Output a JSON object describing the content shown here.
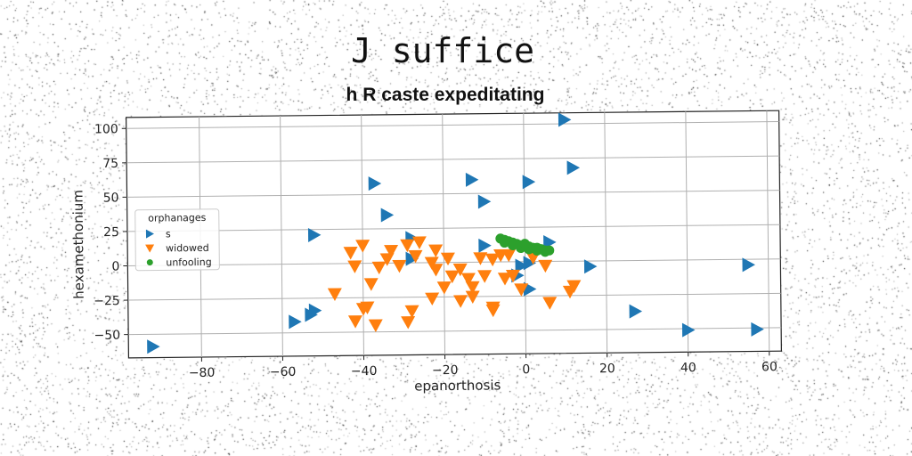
{
  "chart_data": {
    "type": "scatter",
    "suptitle": "J suffice",
    "title": "h R caste expeditating",
    "xlabel": "epanorthosis",
    "ylabel": "hexamethonium",
    "xlim": [
      -98,
      63
    ],
    "ylim": [
      -67,
      108
    ],
    "xticks": [
      -80,
      -60,
      -40,
      -20,
      0,
      20,
      40,
      60
    ],
    "yticks": [
      -50,
      -25,
      0,
      25,
      50,
      75,
      100
    ],
    "grid": true,
    "legend": {
      "title": "orphanages",
      "placement": "center-left"
    },
    "series": [
      {
        "name": "s",
        "marker": "triangle-right",
        "color": "#1f77b4",
        "points": [
          [
            -92,
            -59
          ],
          [
            -57,
            -42
          ],
          [
            -53,
            -37
          ],
          [
            -52,
            -34
          ],
          [
            -52,
            21
          ],
          [
            -37,
            58
          ],
          [
            -34,
            35
          ],
          [
            -28,
            18
          ],
          [
            -28,
            3
          ],
          [
            -13,
            60
          ],
          [
            -10,
            44
          ],
          [
            -10,
            12
          ],
          [
            -2,
            -10
          ],
          [
            -1,
            -3
          ],
          [
            1,
            58
          ],
          [
            1,
            -1
          ],
          [
            1,
            -20
          ],
          [
            6,
            14
          ],
          [
            10,
            103
          ],
          [
            12,
            68
          ],
          [
            16,
            -4
          ],
          [
            27,
            -37
          ],
          [
            40,
            -51
          ],
          [
            55,
            -4
          ],
          [
            57,
            -51
          ]
        ]
      },
      {
        "name": "widowed",
        "marker": "triangle-down",
        "color": "#ff7f0e",
        "points": [
          [
            -43,
            8
          ],
          [
            -42,
            -2
          ],
          [
            -40,
            13
          ],
          [
            -38,
            -15
          ],
          [
            -36,
            -3
          ],
          [
            -34,
            3
          ],
          [
            -33,
            9
          ],
          [
            -31,
            -2
          ],
          [
            -29,
            13
          ],
          [
            -27,
            5
          ],
          [
            -26,
            15
          ],
          [
            -23,
            0
          ],
          [
            -22,
            -5
          ],
          [
            -22,
            9
          ],
          [
            -20,
            -18
          ],
          [
            -19,
            3
          ],
          [
            -18,
            -10
          ],
          [
            -16,
            -5
          ],
          [
            -14,
            -12
          ],
          [
            -13,
            -18
          ],
          [
            -11,
            3
          ],
          [
            -10,
            -10
          ],
          [
            -8,
            2
          ],
          [
            -8,
            -33
          ],
          [
            -6,
            5
          ],
          [
            -5,
            -12
          ],
          [
            -3,
            -10
          ],
          [
            -1,
            -20
          ],
          [
            -13,
            -25
          ],
          [
            -16,
            -28
          ],
          [
            -23,
            -26
          ],
          [
            -28,
            -35
          ],
          [
            -29,
            -43
          ],
          [
            -40,
            -33
          ],
          [
            -42,
            -42
          ],
          [
            -37,
            -45
          ],
          [
            -39,
            -32
          ],
          [
            -8,
            -35
          ],
          [
            6,
            -30
          ],
          [
            12,
            -18
          ],
          [
            2,
            3
          ],
          [
            5,
            -3
          ],
          [
            -4,
            5
          ],
          [
            -47,
            -22
          ],
          [
            11,
            -22
          ]
        ]
      },
      {
        "name": "unfooling",
        "marker": "circle",
        "color": "#2ca02c",
        "points": [
          [
            -6,
            17
          ],
          [
            -5,
            16
          ],
          [
            -4,
            15
          ],
          [
            -3,
            14
          ],
          [
            -2,
            13
          ],
          [
            -1,
            12
          ],
          [
            0,
            11
          ],
          [
            1,
            11
          ],
          [
            2,
            10
          ],
          [
            3,
            10
          ],
          [
            4,
            9
          ],
          [
            5,
            8
          ],
          [
            6,
            8
          ],
          [
            -5,
            14
          ],
          [
            -3,
            12
          ],
          [
            -1,
            10
          ],
          [
            1,
            9
          ],
          [
            3,
            8
          ],
          [
            5,
            7
          ],
          [
            0,
            13
          ]
        ]
      }
    ]
  }
}
